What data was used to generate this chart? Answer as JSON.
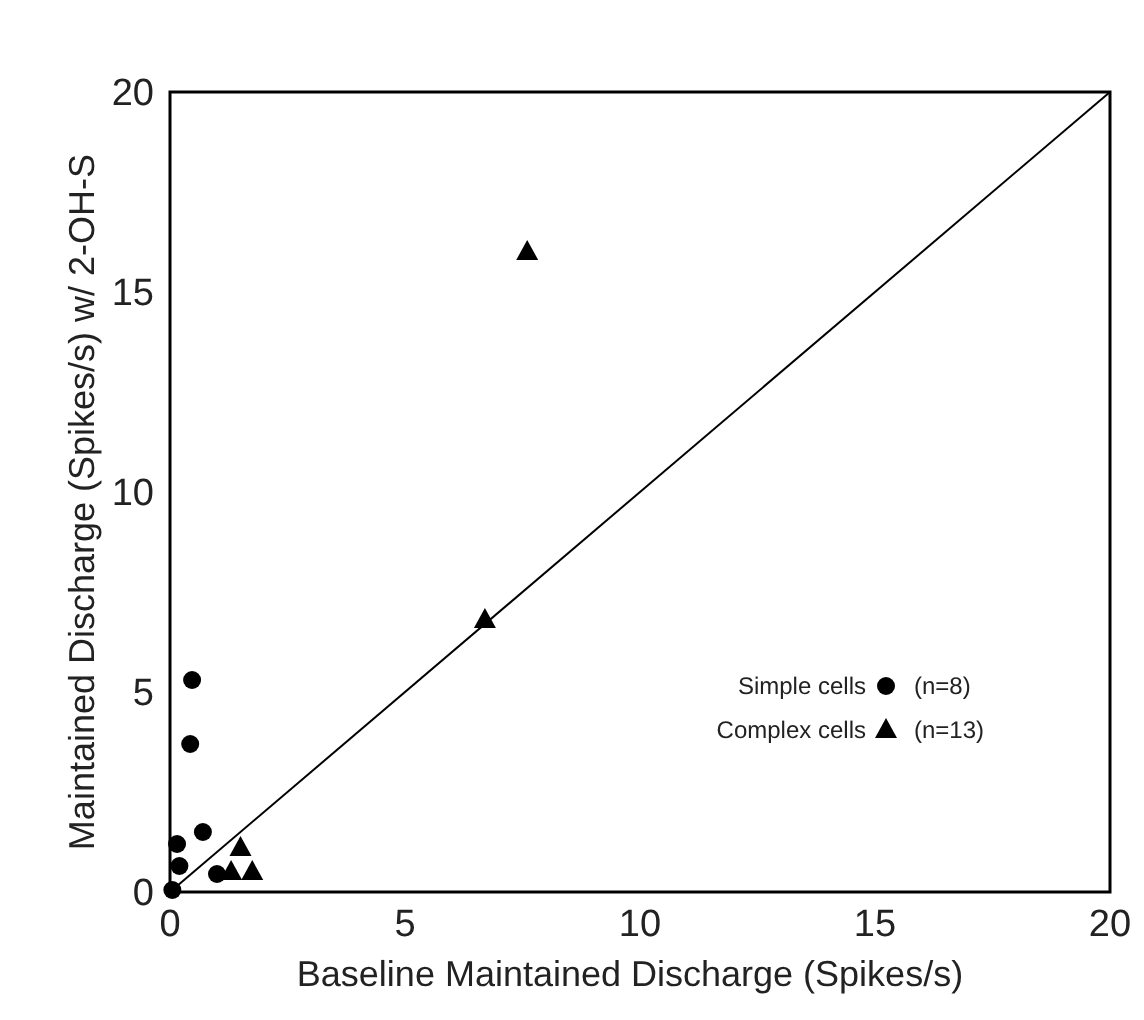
{
  "chart_data": {
    "type": "scatter",
    "xlabel": "Baseline Maintained Discharge (Spikes/s)",
    "ylabel": "Maintained Discharge (Spikes/s) w/ 2-OH-S",
    "xlim": [
      0,
      20
    ],
    "ylim": [
      0,
      20
    ],
    "xticks": [
      0,
      5,
      10,
      15,
      20
    ],
    "yticks": [
      0,
      5,
      10,
      15,
      20
    ],
    "grid": false,
    "legend": "bottom right",
    "series": [
      {
        "name": "Simple cells",
        "color": "#000000",
        "marker": "circle",
        "x": [
          0.47,
          0.43,
          0.7,
          0.15,
          0.2,
          0.05,
          1.0
        ],
        "values": [
          5.3,
          3.7,
          1.5,
          1.2,
          0.65,
          0.05,
          0.45
        ]
      },
      {
        "name": "Complex cells",
        "color": "#000000",
        "marker": "triangle",
        "x": [
          7.6,
          6.7,
          1.5,
          1.75,
          1.3
        ],
        "values": [
          16,
          6.8,
          1.1,
          0.5,
          0.5
        ]
      },
      {
        "type": "line",
        "color": "#000000",
        "marker": "none",
        "x": [
          0,
          20
        ],
        "values": [
          0,
          20
        ]
      }
    ],
    "annotations": [
      "(n=8)",
      "(n=13)"
    ]
  }
}
